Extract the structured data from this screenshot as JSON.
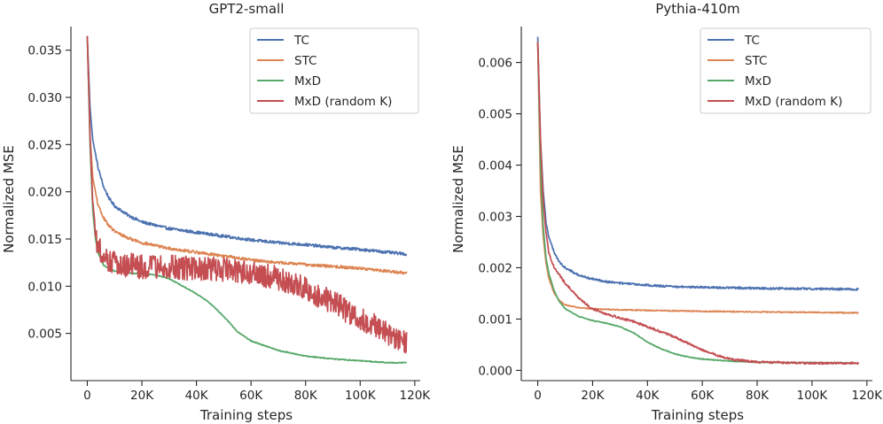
{
  "colors": {
    "TC": "#4c72b0",
    "STC": "#dd8452",
    "MxD": "#55a868",
    "MxD (random K)": "#c44e52"
  },
  "chart_data": [
    {
      "type": "line",
      "title": "GPT2-small",
      "xlabel": "Training steps",
      "ylabel": "Normalized MSE",
      "xlim": [
        -6000,
        122000
      ],
      "ylim": [
        0.0,
        0.0375
      ],
      "xticks": [
        0,
        20000,
        40000,
        60000,
        80000,
        100000,
        120000
      ],
      "xtick_labels": [
        "0",
        "20K",
        "40K",
        "60K",
        "80K",
        "100K",
        "120K"
      ],
      "yticks": [
        0.005,
        0.01,
        0.015,
        0.02,
        0.025,
        0.03,
        0.035
      ],
      "ytick_labels": [
        "0.005",
        "0.010",
        "0.015",
        "0.020",
        "0.025",
        "0.030",
        "0.035"
      ],
      "legend": {
        "position": "top-right",
        "entries": [
          "TC",
          "STC",
          "MxD",
          "MxD (random K)"
        ]
      },
      "series": [
        {
          "name": "TC",
          "x": [
            0,
            1000,
            2000,
            4000,
            6000,
            8000,
            10000,
            15000,
            20000,
            30000,
            40000,
            50000,
            60000,
            70000,
            80000,
            90000,
            100000,
            110000,
            117000
          ],
          "y": [
            0.0365,
            0.029,
            0.0255,
            0.0225,
            0.0205,
            0.0193,
            0.0185,
            0.0175,
            0.0168,
            0.0161,
            0.0157,
            0.0153,
            0.0149,
            0.0146,
            0.0144,
            0.0141,
            0.0139,
            0.0136,
            0.0134
          ],
          "noise": 0.00015
        },
        {
          "name": "STC",
          "x": [
            0,
            1000,
            2000,
            4000,
            6000,
            8000,
            10000,
            15000,
            20000,
            30000,
            40000,
            50000,
            60000,
            70000,
            80000,
            90000,
            100000,
            110000,
            117000
          ],
          "y": [
            0.0365,
            0.026,
            0.0215,
            0.0185,
            0.0172,
            0.0164,
            0.0158,
            0.0151,
            0.0146,
            0.014,
            0.0136,
            0.0132,
            0.0128,
            0.0125,
            0.0123,
            0.0121,
            0.0119,
            0.0116,
            0.0114
          ],
          "noise": 0.00015
        },
        {
          "name": "MxD",
          "x": [
            0,
            1000,
            2000,
            3000,
            4000,
            6000,
            10000,
            15000,
            20000,
            25000,
            30000,
            35000,
            40000,
            45000,
            50000,
            55000,
            60000,
            70000,
            80000,
            90000,
            100000,
            110000,
            117000
          ],
          "y": [
            0.0365,
            0.025,
            0.018,
            0.015,
            0.0135,
            0.0122,
            0.0116,
            0.0114,
            0.0113,
            0.0112,
            0.0108,
            0.01,
            0.0092,
            0.0082,
            0.0068,
            0.0052,
            0.0042,
            0.0032,
            0.0026,
            0.0023,
            0.0021,
            0.0019,
            0.0019
          ],
          "noise": 5e-05
        },
        {
          "name": "MxD (random K)",
          "x": [
            0,
            1000,
            2000,
            3000,
            4000,
            6000,
            10000,
            20000,
            30000,
            40000,
            50000,
            60000,
            65000,
            70000,
            75000,
            80000,
            85000,
            90000,
            95000,
            100000,
            105000,
            110000,
            115000,
            117000
          ],
          "y": [
            0.0365,
            0.026,
            0.019,
            0.0155,
            0.014,
            0.0132,
            0.0125,
            0.012,
            0.012,
            0.0119,
            0.0118,
            0.0115,
            0.0112,
            0.0108,
            0.0103,
            0.0097,
            0.009,
            0.0083,
            0.0074,
            0.0066,
            0.0058,
            0.005,
            0.0042,
            0.004
          ],
          "noise": 0.0013
        }
      ]
    },
    {
      "type": "line",
      "title": "Pythia-410m",
      "xlabel": "Training steps",
      "ylabel": "Normalized MSE",
      "xlim": [
        -6000,
        122000
      ],
      "ylim": [
        -0.0002,
        0.0067
      ],
      "xticks": [
        0,
        20000,
        40000,
        60000,
        80000,
        100000,
        120000
      ],
      "xtick_labels": [
        "0",
        "20K",
        "40K",
        "60K",
        "80K",
        "100K",
        "120K"
      ],
      "yticks": [
        0.0,
        0.001,
        0.002,
        0.003,
        0.004,
        0.005,
        0.006
      ],
      "ytick_labels": [
        "0.000",
        "0.001",
        "0.002",
        "0.003",
        "0.004",
        "0.005",
        "0.006"
      ],
      "legend": {
        "position": "top-right",
        "entries": [
          "TC",
          "STC",
          "MxD",
          "MxD (random K)"
        ]
      },
      "series": [
        {
          "name": "TC",
          "x": [
            0,
            1000,
            2000,
            3000,
            4000,
            6000,
            8000,
            10000,
            15000,
            20000,
            25000,
            30000,
            40000,
            50000,
            60000,
            80000,
            100000,
            117000
          ],
          "y": [
            0.0065,
            0.0045,
            0.0035,
            0.0029,
            0.0026,
            0.0023,
            0.0021,
            0.002,
            0.00185,
            0.00178,
            0.00173,
            0.0017,
            0.00166,
            0.00163,
            0.00162,
            0.0016,
            0.00159,
            0.00158
          ],
          "noise": 2e-05
        },
        {
          "name": "STC",
          "x": [
            0,
            1000,
            2000,
            3000,
            4000,
            6000,
            8000,
            10000,
            15000,
            20000,
            25000,
            30000,
            40000,
            50000,
            60000,
            80000,
            100000,
            117000
          ],
          "y": [
            0.0064,
            0.0035,
            0.0026,
            0.0021,
            0.0018,
            0.0015,
            0.00135,
            0.00128,
            0.00122,
            0.0012,
            0.00119,
            0.00118,
            0.00117,
            0.00116,
            0.00115,
            0.00114,
            0.00113,
            0.00112
          ],
          "noise": 1e-05
        },
        {
          "name": "MxD",
          "x": [
            0,
            1000,
            2000,
            3000,
            4000,
            6000,
            8000,
            10000,
            15000,
            20000,
            25000,
            30000,
            35000,
            40000,
            45000,
            50000,
            55000,
            60000,
            70000,
            80000,
            90000,
            100000,
            117000
          ],
          "y": [
            0.0064,
            0.004,
            0.0028,
            0.0022,
            0.0019,
            0.00155,
            0.00133,
            0.0012,
            0.00105,
            0.00097,
            0.00092,
            0.00085,
            0.00073,
            0.00055,
            0.00042,
            0.00032,
            0.00026,
            0.00022,
            0.00018,
            0.00016,
            0.00015,
            0.00015,
            0.00014
          ],
          "noise": 8e-06
        },
        {
          "name": "MxD (random K)",
          "x": [
            0,
            1000,
            2000,
            3000,
            4000,
            6000,
            8000,
            10000,
            15000,
            20000,
            25000,
            30000,
            35000,
            40000,
            45000,
            50000,
            55000,
            60000,
            65000,
            70000,
            80000,
            90000,
            100000,
            117000
          ],
          "y": [
            0.0064,
            0.0045,
            0.0033,
            0.0027,
            0.0023,
            0.002,
            0.00185,
            0.0017,
            0.0014,
            0.0012,
            0.0011,
            0.00102,
            0.00095,
            0.00085,
            0.00075,
            0.00065,
            0.00052,
            0.0004,
            0.0003,
            0.00022,
            0.00016,
            0.00015,
            0.00014,
            0.00014
          ],
          "noise": 2e-05
        }
      ]
    }
  ]
}
